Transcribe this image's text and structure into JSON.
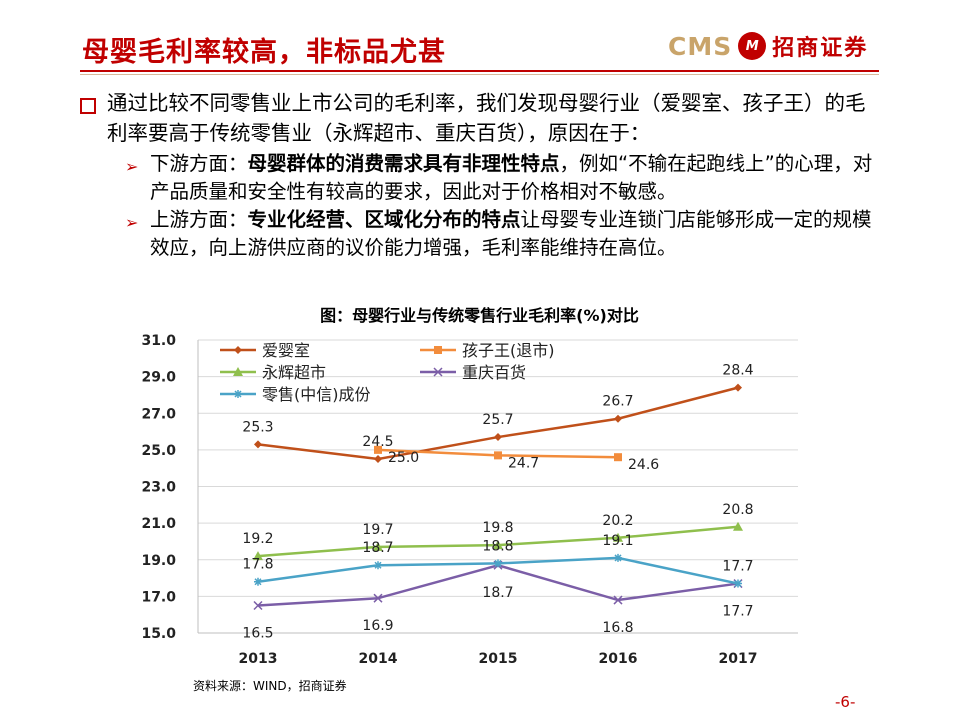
{
  "header": {
    "title": "母婴毛利率较高，非标品尤甚",
    "logo_cms": "CMS",
    "logo_mark": "M",
    "logo_name": "招商证券"
  },
  "content": {
    "main_point": "通过比较不同零售业上市公司的毛利率，我们发现母婴行业（爱婴室、孩子王）的毛利率要高于传统零售业（永辉超市、重庆百货），原因在于：",
    "sub_points": [
      {
        "prefix": "下游方面：",
        "bold": "母婴群体的消费需求具有非理性特点",
        "rest": "，例如“不输在起跑线上”的心理，对产品质量和安全性有较高的要求，因此对于价格相对不敏感。"
      },
      {
        "prefix": "上游方面：",
        "bold": "专业化经营、区域化分布的特点",
        "rest": "让母婴专业连锁门店能够形成一定的规模效应，向上游供应商的议价能力增强，毛利率能维持在高位。"
      }
    ]
  },
  "chart_data": {
    "type": "line",
    "title": "图：母婴行业与传统零售行业毛利率(%)对比",
    "xlabel": "",
    "ylabel": "",
    "categories": [
      "2013",
      "2014",
      "2015",
      "2016",
      "2017"
    ],
    "ylim": [
      15.0,
      31.0
    ],
    "yticks": [
      "15.0",
      "17.0",
      "19.0",
      "21.0",
      "23.0",
      "25.0",
      "27.0",
      "29.0",
      "31.0"
    ],
    "grid": true,
    "legend_position": "top-left",
    "series": [
      {
        "name": "爱婴室",
        "color": "#c0501a",
        "marker": "diamond",
        "values": [
          25.3,
          24.5,
          25.7,
          26.7,
          28.4
        ],
        "labels": [
          "25.3",
          "24.5",
          "25.7",
          "26.7",
          "28.4"
        ],
        "label_pos": [
          "above",
          "above",
          "above",
          "above",
          "above"
        ]
      },
      {
        "name": "孩子王(退市)",
        "color": "#f28c3c",
        "marker": "square",
        "values": [
          null,
          25.0,
          24.7,
          24.6,
          null
        ],
        "labels": [
          null,
          "25.0",
          "24.7",
          "24.6",
          null
        ],
        "label_pos": [
          null,
          "right",
          "right",
          "right",
          null
        ]
      },
      {
        "name": "永辉超市",
        "color": "#8fbf4d",
        "marker": "triangle",
        "values": [
          19.2,
          19.7,
          19.8,
          20.2,
          20.8
        ],
        "labels": [
          "19.2",
          "19.7",
          "19.8",
          "20.2",
          "20.8"
        ],
        "label_pos": [
          "above",
          "above",
          "above",
          "above",
          "above"
        ]
      },
      {
        "name": "重庆百货",
        "color": "#7b5ea7",
        "marker": "x",
        "values": [
          16.5,
          16.9,
          18.7,
          16.8,
          17.7
        ],
        "labels": [
          "16.5",
          "16.9",
          "18.7",
          "16.8",
          "17.7"
        ],
        "label_pos": [
          "below",
          "below",
          "below",
          "below",
          "below"
        ]
      },
      {
        "name": "零售(中信)成份",
        "color": "#4aa3c7",
        "marker": "star",
        "values": [
          17.8,
          18.7,
          18.8,
          19.1,
          17.7
        ],
        "labels": [
          "17.8",
          "18.7",
          "18.8",
          "19.1",
          "17.7"
        ],
        "label_pos": [
          "above",
          "above",
          "above",
          "above",
          "above"
        ]
      }
    ],
    "source": "资料来源：WIND，招商证券"
  },
  "footer": {
    "page_number": "-6-"
  }
}
